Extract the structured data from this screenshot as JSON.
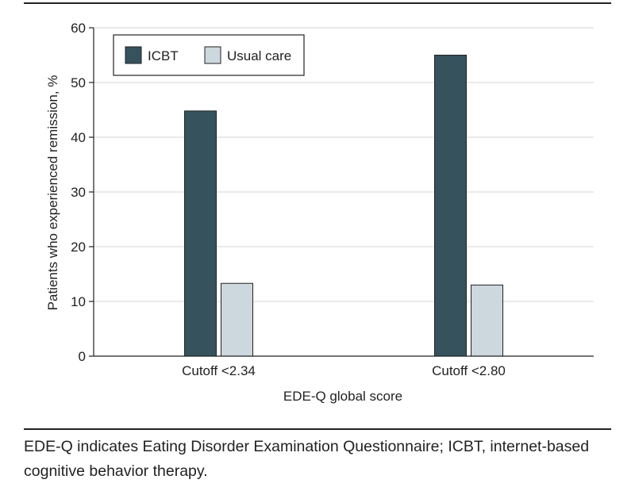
{
  "chart_data": {
    "type": "bar",
    "categories": [
      "Cutoff <2.34",
      "Cutoff <2.80"
    ],
    "series": [
      {
        "name": "ICBT",
        "values": [
          44.8,
          55.0
        ],
        "color": "#35525d"
      },
      {
        "name": "Usual care",
        "values": [
          13.3,
          13.0
        ],
        "color": "#cdd7de"
      }
    ],
    "xlabel": "EDE-Q global score",
    "ylabel": "Patients who experienced remission, %",
    "ylim": [
      0,
      60
    ],
    "yticks": [
      0,
      10,
      20,
      30,
      40,
      50,
      60
    ],
    "grid": true,
    "legend_position": "top-left"
  },
  "caption": "EDE-Q indicates Eating Disorder Examination Questionnaire; ICBT, internet-based cognitive behavior therapy."
}
